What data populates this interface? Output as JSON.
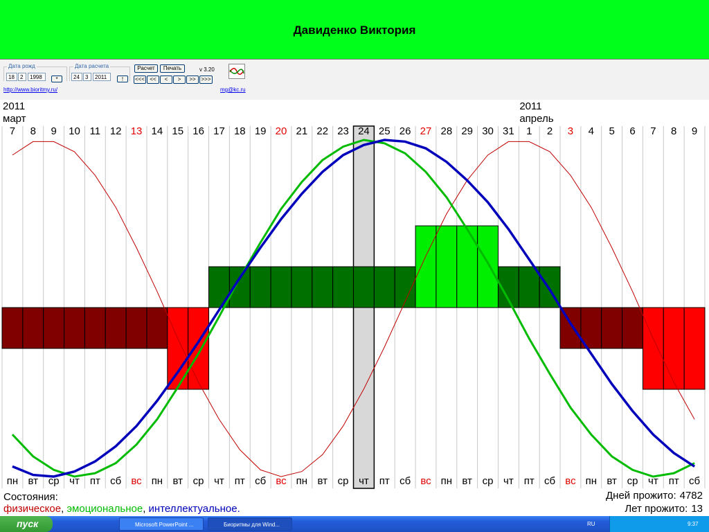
{
  "header": {
    "title": "Давиденко Виктория"
  },
  "controls": {
    "birth_label": "Дата рожд",
    "birth": [
      "18",
      "2",
      "1998"
    ],
    "birth_button": "*",
    "calc_label": "Дата расчета",
    "calc": [
      "24",
      "3",
      "2011"
    ],
    "calc_button": "!",
    "buttons": [
      "Расчет",
      "Печать"
    ],
    "version": "v 3.20",
    "nav": [
      "<<<",
      "<<",
      "<",
      ">",
      ">>",
      ">>>"
    ],
    "links": [
      "http://www.bioritmy.ru/",
      "mg@kc.ru"
    ]
  },
  "chart_data": {
    "type": "biorhythm",
    "days": [
      {
        "day": "7",
        "weekday": "пн",
        "red": false,
        "year": "2011",
        "month": "март"
      },
      {
        "day": "8",
        "weekday": "вт",
        "red": false
      },
      {
        "day": "9",
        "weekday": "ср",
        "red": false
      },
      {
        "day": "10",
        "weekday": "чт",
        "red": false
      },
      {
        "day": "11",
        "weekday": "пт",
        "red": false
      },
      {
        "day": "12",
        "weekday": "сб",
        "red": false
      },
      {
        "day": "13",
        "weekday": "вс",
        "red": true
      },
      {
        "day": "14",
        "weekday": "пн",
        "red": false
      },
      {
        "day": "15",
        "weekday": "вт",
        "red": false
      },
      {
        "day": "16",
        "weekday": "ср",
        "red": false
      },
      {
        "day": "17",
        "weekday": "чт",
        "red": false
      },
      {
        "day": "18",
        "weekday": "пт",
        "red": false
      },
      {
        "day": "19",
        "weekday": "сб",
        "red": false
      },
      {
        "day": "20",
        "weekday": "вс",
        "red": true
      },
      {
        "day": "21",
        "weekday": "пн",
        "red": false
      },
      {
        "day": "22",
        "weekday": "вт",
        "red": false
      },
      {
        "day": "23",
        "weekday": "ср",
        "red": false
      },
      {
        "day": "24",
        "weekday": "чт",
        "red": false,
        "selected": true
      },
      {
        "day": "25",
        "weekday": "пт",
        "red": false
      },
      {
        "day": "26",
        "weekday": "сб",
        "red": false
      },
      {
        "day": "27",
        "weekday": "вс",
        "red": true
      },
      {
        "day": "28",
        "weekday": "пн",
        "red": false
      },
      {
        "day": "29",
        "weekday": "вт",
        "red": false
      },
      {
        "day": "30",
        "weekday": "ср",
        "red": false
      },
      {
        "day": "31",
        "weekday": "чт",
        "red": false
      },
      {
        "day": "1",
        "weekday": "пт",
        "red": false,
        "year": "2011",
        "month": "апрель"
      },
      {
        "day": "2",
        "weekday": "сб",
        "red": false
      },
      {
        "day": "3",
        "weekday": "вс",
        "red": true
      },
      {
        "day": "4",
        "weekday": "пн",
        "red": false
      },
      {
        "day": "5",
        "weekday": "вт",
        "red": false
      },
      {
        "day": "6",
        "weekday": "ср",
        "red": false
      },
      {
        "day": "7",
        "weekday": "чт",
        "red": false
      },
      {
        "day": "8",
        "weekday": "пт",
        "red": false
      },
      {
        "day": "9",
        "weekday": "сб",
        "red": false
      }
    ],
    "states": [
      -1,
      -1,
      -1,
      -1,
      -1,
      -1,
      -1,
      -1,
      -2,
      -2,
      1,
      1,
      1,
      1,
      1,
      1,
      1,
      1,
      1,
      1,
      2,
      2,
      2,
      2,
      1,
      1,
      1,
      -1,
      -1,
      -1,
      -1,
      -2,
      -2,
      -2
    ],
    "state_colors": {
      "-2": "#ff0000",
      "-1": "#800000",
      "1": "#007000",
      "2": "#00ee00"
    },
    "ylim": [
      -1,
      1
    ],
    "series": [
      {
        "name": "физическое",
        "color": "#c00000",
        "width": 1,
        "values": [
          0.91,
          0.99,
          0.99,
          0.93,
          0.79,
          0.6,
          0.36,
          0.1,
          -0.18,
          -0.44,
          -0.66,
          -0.84,
          -0.96,
          -1.0,
          -0.97,
          -0.87,
          -0.7,
          -0.48,
          -0.23,
          0.04,
          0.31,
          0.56,
          0.76,
          0.91,
          0.99,
          0.99,
          0.93,
          0.79,
          0.6,
          0.36,
          0.1,
          -0.18,
          -0.44,
          -0.66
        ]
      },
      {
        "name": "эмоциональное",
        "color": "#00bb00",
        "width": 3,
        "values": [
          -0.75,
          -0.88,
          -0.96,
          -1.0,
          -0.98,
          -0.92,
          -0.81,
          -0.66,
          -0.47,
          -0.27,
          -0.05,
          0.18,
          0.39,
          0.59,
          0.75,
          0.88,
          0.96,
          1.0,
          0.98,
          0.92,
          0.81,
          0.66,
          0.47,
          0.27,
          0.05,
          -0.18,
          -0.39,
          -0.59,
          -0.75,
          -0.88,
          -0.96,
          -1.0,
          -0.98,
          -0.92
        ]
      },
      {
        "name": "интеллектуальное.",
        "color": "#0000bb",
        "width": 3.5,
        "values": [
          -0.94,
          -0.99,
          -1.0,
          -0.97,
          -0.91,
          -0.82,
          -0.7,
          -0.55,
          -0.38,
          -0.2,
          -0.01,
          0.18,
          0.36,
          0.53,
          0.68,
          0.81,
          0.91,
          0.97,
          1.0,
          0.99,
          0.95,
          0.87,
          0.76,
          0.63,
          0.47,
          0.29,
          0.11,
          -0.09,
          -0.27,
          -0.45,
          -0.61,
          -0.75,
          -0.86,
          -0.94
        ]
      }
    ],
    "states_label": "Состояния:",
    "legend_separator": ", ",
    "days_lived_label": "Дней прожито:",
    "days_lived": 4782,
    "years_lived_label": "Лет прожито:",
    "years_lived": 13
  },
  "taskbar": {
    "start": "пуск",
    "tasks": [
      "Microsoft PowerPoint ...",
      "Биоритмы для Wind..."
    ],
    "lang": "RU",
    "clock": "9:37"
  }
}
